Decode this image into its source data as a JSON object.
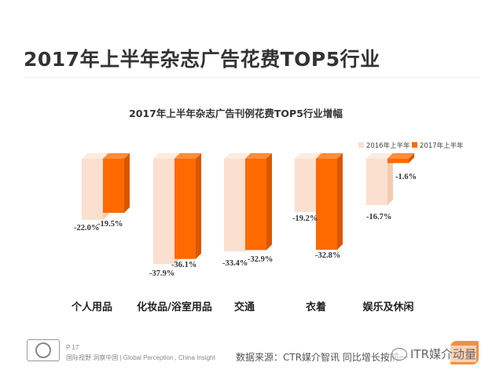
{
  "page": {
    "title": "2017年上半年杂志广告花费TOP5行业",
    "page_number": "P 17",
    "tagline": "国际视野  洞察中国 |  Global Perception , China  Insight",
    "source": "数据来源：CTR媒介智讯  同比增长按前一",
    "watermark": "ITR媒介动量"
  },
  "colors": {
    "series_2016": "#fbe0cf",
    "series_2016_side": "#f3cbb2",
    "series_2016_top": "#fdecdf",
    "series_2017": "#ff6a00",
    "series_2017_side": "#d95600",
    "series_2017_top": "#ff8c3a"
  },
  "chart_data": {
    "type": "bar",
    "title": "2017年上半年杂志广告刊例花费TOP5行业增幅",
    "categories": [
      "个人用品",
      "化妆品/浴室用品",
      "交通",
      "衣着",
      "娱乐及休闲"
    ],
    "series": [
      {
        "name": "2016年上半年",
        "values": [
          -22.0,
          -37.9,
          -33.4,
          -19.2,
          -16.7
        ]
      },
      {
        "name": "2017年上半年",
        "values": [
          -19.5,
          -36.1,
          -32.9,
          -32.8,
          -1.6
        ]
      }
    ],
    "value_labels": [
      [
        "-22.0%",
        "-37.9%",
        "-33.4%",
        "-19.2%",
        "-16.7%"
      ],
      [
        "-19.5%",
        "-36.1%",
        "-32.9%",
        "-32.8%",
        "-1.6%"
      ]
    ],
    "ylim": [
      -40,
      0
    ],
    "xlabel": "",
    "ylabel": "",
    "grid": false,
    "legend": "top-right"
  }
}
